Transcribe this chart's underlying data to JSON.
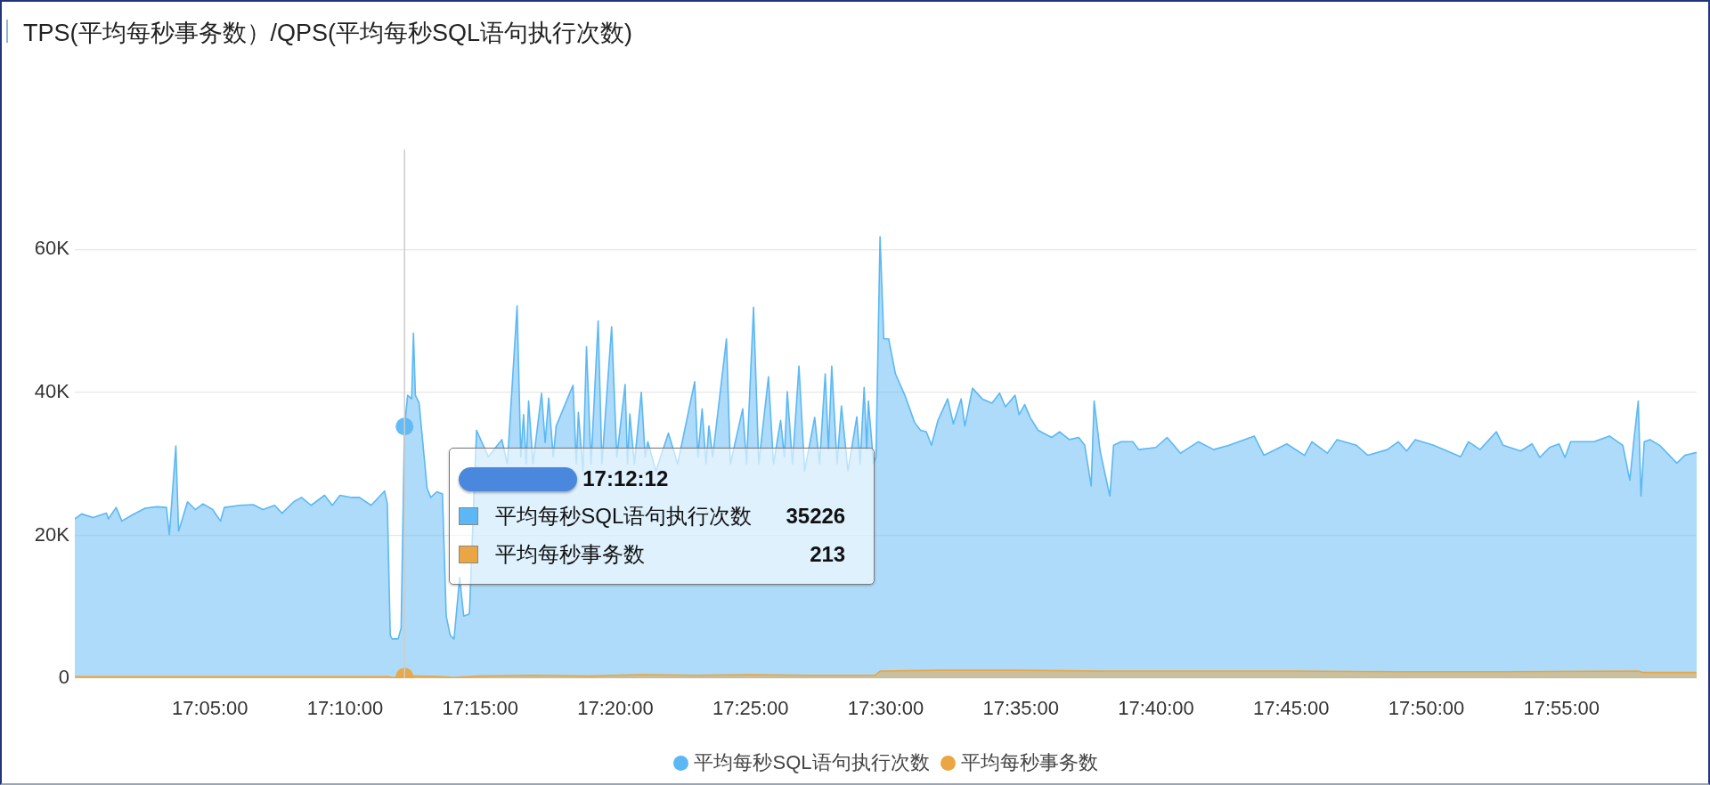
{
  "chart_data": {
    "type": "area",
    "title": "TPS(平均每秒事务数）/QPS(平均每秒SQL语句执行次数)",
    "series": [
      {
        "name": "平均每秒SQL语句执行次数",
        "color": "#5bb8f4",
        "x": [
          17,
          17.0042,
          17.0112,
          17.0195,
          17.0207,
          17.0255,
          17.029,
          17.035,
          17.0433,
          17.0505,
          17.0565,
          17.0583,
          17.0623,
          17.064,
          17.0695,
          17.0743,
          17.079,
          17.085,
          17.0898,
          17.0922,
          17.1017,
          17.11,
          17.116,
          17.1232,
          17.1278,
          17.135,
          17.1398,
          17.1457,
          17.154,
          17.1588,
          17.1635,
          17.1707,
          17.1755,
          17.1827,
          17.191,
          17.1927,
          17.1945,
          17.1957,
          17.1993,
          17.2012,
          17.2033,
          17.2052,
          17.2077,
          17.2088,
          17.21,
          17.2123,
          17.2172,
          17.2195,
          17.2232,
          17.2267,
          17.229,
          17.2315,
          17.2338,
          17.2373,
          17.2398,
          17.2433,
          17.2477,
          17.255,
          17.2633,
          17.2667,
          17.2727,
          17.275,
          17.2767,
          17.2783,
          17.2798,
          17.2825,
          17.2878,
          17.29,
          17.2922,
          17.295,
          17.2968,
          17.3072,
          17.3092,
          17.3105,
          17.3133,
          17.3155,
          17.3183,
          17.3227,
          17.325,
          17.331,
          17.3342,
          17.3393,
          17.3408,
          17.3422,
          17.345,
          17.3493,
          17.3517,
          17.3533,
          17.3583,
          17.366,
          17.3717,
          17.3822,
          17.3842,
          17.3868,
          17.3892,
          17.391,
          17.3933,
          17.4018,
          17.4042,
          17.4118,
          17.4142,
          17.4185,
          17.4217,
          17.4277,
          17.4308,
          17.4352,
          17.4375,
          17.4393,
          17.4425,
          17.4465,
          17.45,
          17.4562,
          17.4592,
          17.4627,
          17.4647,
          17.4667,
          17.47,
          17.4727,
          17.4767,
          17.4822,
          17.4842,
          17.4867,
          17.4883,
          17.4893,
          17.4925,
          17.494,
          17.4965,
          17.4988,
          17.5018,
          17.506,
          17.5118,
          17.5178,
          17.5215,
          17.525,
          17.5282,
          17.5322,
          17.5382,
          17.5417,
          17.5465,
          17.5488,
          17.5535,
          17.5595,
          17.5655,
          17.5702,
          17.5738,
          17.5798,
          17.5822,
          17.5857,
          17.5893,
          17.594,
          17.6023,
          17.6072,
          17.6132,
          17.619,
          17.6227,
          17.6267,
          17.6285,
          17.6322,
          17.6382,
          17.6405,
          17.6452,
          17.6523,
          17.656,
          17.6665,
          17.6735,
          17.6818,
          17.6927,
          17.7022,
          17.7117,
          17.7272,
          17.7332,
          17.7473,
          17.7582,
          17.7628,
          17.7723,
          17.7783,
          17.7902,
          17.7973,
          17.8093,
          17.816,
          17.8212,
          17.8265,
          17.8378,
          17.8545,
          17.8593,
          17.8665,
          17.8765,
          17.8807,
          17.8915,
          17.8985,
          17.9033,
          17.9093,
          17.9152,
          17.9188,
          17.9223,
          17.9367,
          17.9462,
          17.9545,
          17.9588,
          17.9612,
          17.964,
          17.9657,
          17.9677,
          17.9712,
          17.9772,
          17.9878,
          17.9927,
          18
        ],
        "values": [
          22300,
          23000,
          22500,
          23100,
          22300,
          23900,
          22000,
          22800,
          23800,
          24000,
          23900,
          20100,
          32500,
          20600,
          24700,
          23600,
          24400,
          23600,
          22000,
          23900,
          24200,
          24300,
          23600,
          24200,
          23100,
          24700,
          25300,
          24200,
          25600,
          24200,
          25600,
          25300,
          25300,
          24200,
          26200,
          24400,
          6000,
          5500,
          5500,
          7000,
          35226,
          39600,
          39100,
          48300,
          39600,
          38500,
          26600,
          25300,
          26100,
          25800,
          8700,
          6000,
          5500,
          14100,
          8700,
          9000,
          34700,
          31000,
          33400,
          30000,
          52100,
          31000,
          36900,
          30000,
          38800,
          30000,
          39900,
          33000,
          39200,
          31000,
          35300,
          41000,
          30000,
          37200,
          29000,
          46400,
          30000,
          50000,
          30000,
          49200,
          31000,
          41100,
          30000,
          37000,
          30000,
          40000,
          31000,
          33100,
          29000,
          34300,
          30000,
          41500,
          31000,
          37700,
          30000,
          35300,
          31000,
          47500,
          30000,
          37700,
          30000,
          51900,
          30000,
          42200,
          30000,
          36100,
          31000,
          40100,
          30000,
          43700,
          29000,
          36500,
          30000,
          42600,
          32000,
          43700,
          30000,
          38100,
          29000,
          36600,
          30000,
          40700,
          32000,
          38800,
          30000,
          31000,
          61800,
          47500,
          47500,
          42600,
          39600,
          35800,
          34700,
          34500,
          32600,
          36100,
          39100,
          35600,
          39100,
          35300,
          40600,
          39100,
          38500,
          39900,
          38000,
          39600,
          36900,
          38300,
          36400,
          34700,
          33700,
          34500,
          33400,
          33700,
          32600,
          26900,
          38800,
          31800,
          25500,
          32600,
          33100,
          33100,
          32000,
          32300,
          33700,
          31500,
          33100,
          32000,
          32600,
          33900,
          31200,
          32800,
          31200,
          33100,
          31500,
          33400,
          32600,
          31200,
          32000,
          33100,
          31800,
          33400,
          32600,
          31000,
          33100,
          32000,
          34500,
          32600,
          31800,
          32800,
          30900,
          32300,
          32800,
          30900,
          33100,
          33100,
          33900,
          32600,
          27700,
          33100,
          38800,
          25500,
          33100,
          33400,
          32600,
          30100,
          31200,
          31600
        ]
      },
      {
        "name": "平均每秒事务数",
        "color": "#e9a642",
        "x": [
          17,
          17.0833,
          17.1933,
          17.1958,
          17.2012,
          17.2033,
          17.21,
          17.2267,
          17.2333,
          17.25,
          17.2833,
          17.3167,
          17.35,
          17.3833,
          17.4167,
          17.45,
          17.4933,
          17.4967,
          17.5333,
          17.5833,
          17.6333,
          17.6833,
          17.75,
          17.8167,
          17.8833,
          17.964,
          17.9667,
          18
        ],
        "values": [
          200,
          200,
          200,
          100,
          200,
          213,
          300,
          200,
          100,
          300,
          400,
          300,
          500,
          400,
          500,
          400,
          400,
          1000,
          1100,
          1100,
          1000,
          1000,
          1000,
          900,
          900,
          1000,
          800,
          800
        ]
      },
      {
        "type": "scatter",
        "marker": "circle",
        "x": [
          17.2033,
          17.2033
        ],
        "values": [
          35226,
          213
        ],
        "colors": [
          "#5bb8f4",
          "#e9a642"
        ]
      }
    ],
    "xlim": [
      17,
      18
    ],
    "xticks": [
      {
        "value": 17.083333,
        "label": "17:05:00"
      },
      {
        "value": 17.166667,
        "label": "17:10:00"
      },
      {
        "value": 17.25,
        "label": "17:15:00"
      },
      {
        "value": 17.333333,
        "label": "17:20:00"
      },
      {
        "value": 17.416667,
        "label": "17:25:00"
      },
      {
        "value": 17.5,
        "label": "17:30:00"
      },
      {
        "value": 17.583333,
        "label": "17:35:00"
      },
      {
        "value": 17.666667,
        "label": "17:40:00"
      },
      {
        "value": 17.75,
        "label": "17:45:00"
      },
      {
        "value": 17.833333,
        "label": "17:50:00"
      },
      {
        "value": 17.916667,
        "label": "17:55:00"
      }
    ],
    "ylim": [
      0,
      74000
    ],
    "yticks": [
      0,
      {
        "value": 20000,
        "label": "20K"
      },
      {
        "value": 40000,
        "label": "40K"
      },
      {
        "value": 60000,
        "label": "60K"
      }
    ],
    "grid": "y",
    "legend": "bottom",
    "ref_lines": [
      {
        "axis": "x",
        "value": 17.2033,
        "color": "#cccccc"
      }
    ],
    "annotations": [
      "17:12:12",
      "35226",
      "213"
    ]
  }
}
